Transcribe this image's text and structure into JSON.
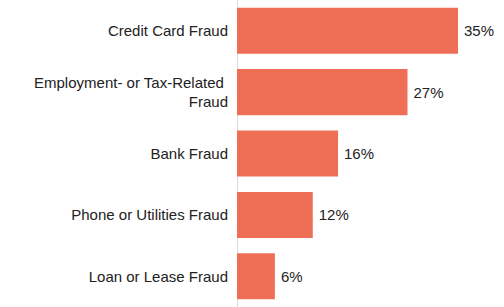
{
  "chart_data": {
    "type": "bar",
    "orientation": "horizontal",
    "categories": [
      "Credit Card Fraud",
      "Employment- or Tax-Related Fraud",
      "Bank Fraud",
      "Phone or Utilities Fraud",
      "Loan or Lease Fraud"
    ],
    "values": [
      35,
      27,
      16,
      12,
      6
    ],
    "value_labels": [
      "35%",
      "27%",
      "16%",
      "12%",
      "6%"
    ],
    "color": "#ef6f56",
    "xlim": [
      0,
      35
    ],
    "data_labels": true,
    "tick_labels": "y",
    "grid": false
  }
}
